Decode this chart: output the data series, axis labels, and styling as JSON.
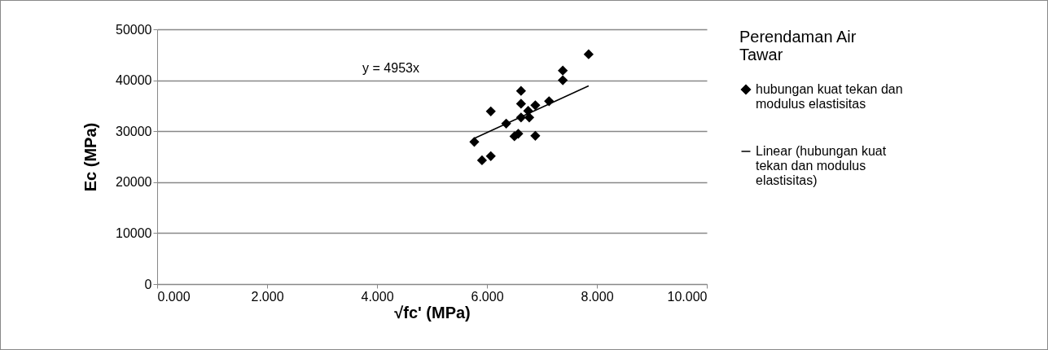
{
  "chart_data": {
    "type": "scatter",
    "xlabel": "√fc' (MPa)",
    "ylabel": "Ec  (MPa)",
    "legend_title": "Perendaman Air Tawar",
    "annotations": [
      "y = 4953x"
    ],
    "series": [
      {
        "name": "hubungan kuat tekan dan modulus elastisitas",
        "color": "#000000",
        "marker": "diamond",
        "x": [
          5.77,
          5.91,
          6.07,
          6.07,
          6.35,
          6.5,
          6.57,
          6.62,
          6.62,
          6.62,
          6.75,
          6.77,
          6.88,
          6.88,
          7.13,
          7.38,
          7.38,
          7.85
        ],
        "values": [
          27900,
          24300,
          25100,
          33900,
          31500,
          29000,
          29500,
          37900,
          35400,
          32700,
          34000,
          32700,
          35100,
          29100,
          35900,
          40000,
          41900,
          45100
        ]
      },
      {
        "name": "Linear (hubungan kuat tekan dan modulus elastisitas)",
        "type": "line",
        "color": "#000000",
        "x": [
          5.77,
          7.85
        ],
        "values": [
          28600,
          38900
        ]
      }
    ],
    "xlim": [
      0,
      10
    ],
    "xticks": [
      {
        "value": 0,
        "label": "0.000"
      },
      {
        "value": 2,
        "label": "2.000"
      },
      {
        "value": 4,
        "label": "4.000"
      },
      {
        "value": 6,
        "label": "6.000"
      },
      {
        "value": 8,
        "label": "8.000"
      },
      {
        "value": 10,
        "label": "10.000"
      }
    ],
    "ylim": [
      0,
      50000
    ],
    "yticks": [
      0,
      10000,
      20000,
      30000,
      40000,
      50000
    ],
    "grid": "y",
    "legend": "right"
  }
}
